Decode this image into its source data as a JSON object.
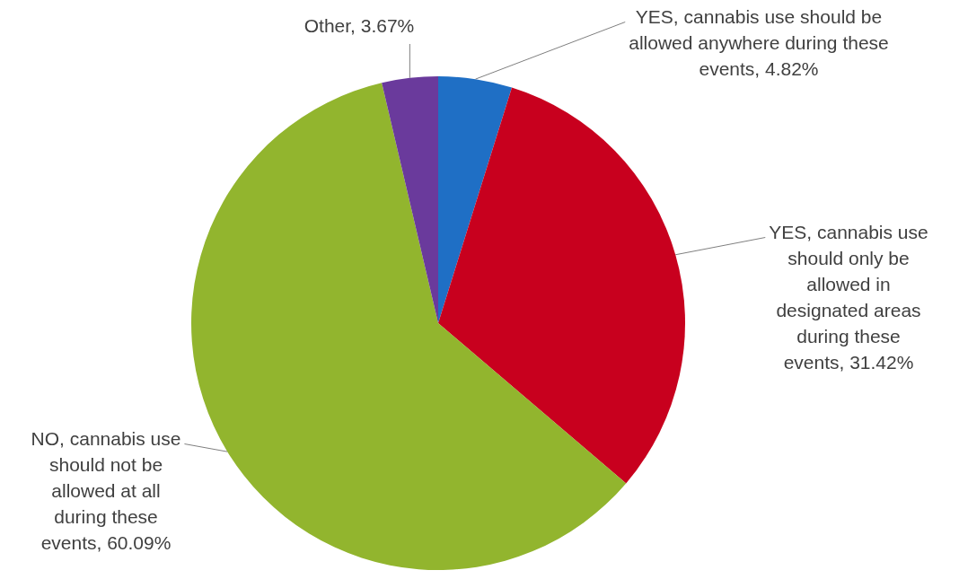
{
  "chart_data": {
    "type": "pie",
    "categories": [
      "YES, cannabis use should be allowed anywhere during these events",
      "YES, cannabis use should only be allowed in designated areas during these events",
      "NO, cannabis use should not be allowed at all during these events",
      "Other"
    ],
    "values": [
      4.82,
      31.42,
      60.09,
      3.67
    ],
    "colors": [
      "#1f6fc5",
      "#c8001e",
      "#92b52e",
      "#6a3a9c"
    ],
    "value_labels": [
      "4.82%",
      "31.42%",
      "60.09%",
      "3.67%"
    ],
    "legend": false
  }
}
